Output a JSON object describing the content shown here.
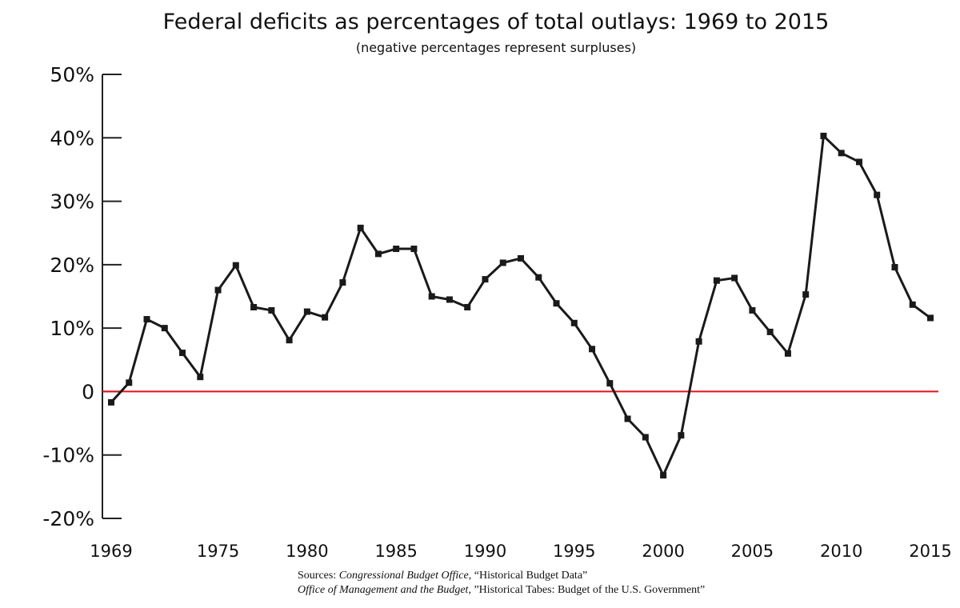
{
  "chart_data": {
    "type": "line",
    "title": "Federal deficits as percentages of total outlays: 1969 to 2015",
    "subtitle": "(negative percentages represent surpluses)",
    "xlabel": "",
    "ylabel": "",
    "ylim": [
      -20,
      50
    ],
    "xlim": [
      1969,
      2015
    ],
    "yticks": [
      50,
      40,
      30,
      20,
      10,
      0,
      -10,
      -20
    ],
    "ytick_labels": [
      "50%",
      "40%",
      "30%",
      "20%",
      "10%",
      "0",
      "-10%",
      "-20%"
    ],
    "xticks": [
      1969,
      1975,
      1980,
      1985,
      1990,
      1995,
      2000,
      2005,
      2010,
      2015
    ],
    "xtick_labels": [
      "1969",
      "1975",
      "1980",
      "1985",
      "1990",
      "1995",
      "2000",
      "2005",
      "2010",
      "2015"
    ],
    "grid": false,
    "zero_line_color": "#e0141e",
    "line_color": "#1a1a1a",
    "marker": "square",
    "x": [
      1969,
      1970,
      1971,
      1972,
      1973,
      1974,
      1975,
      1976,
      1977,
      1978,
      1979,
      1980,
      1981,
      1982,
      1983,
      1984,
      1985,
      1986,
      1987,
      1988,
      1989,
      1990,
      1991,
      1992,
      1993,
      1994,
      1995,
      1996,
      1997,
      1998,
      1999,
      2000,
      2001,
      2002,
      2003,
      2004,
      2005,
      2006,
      2007,
      2008,
      2009,
      2010,
      2011,
      2012,
      2013,
      2014,
      2015
    ],
    "values": [
      -1.7,
      1.4,
      11.4,
      10.0,
      6.1,
      2.3,
      16.0,
      19.9,
      13.3,
      12.8,
      8.1,
      12.6,
      11.7,
      17.2,
      25.8,
      21.7,
      22.5,
      22.5,
      15.0,
      14.5,
      13.3,
      17.7,
      20.3,
      21.0,
      18.0,
      13.9,
      10.8,
      6.7,
      1.3,
      -4.3,
      -7.2,
      -13.2,
      -6.9,
      7.9,
      17.5,
      17.9,
      12.8,
      9.4,
      6.0,
      15.3,
      40.3,
      37.6,
      36.2,
      31.0,
      19.6,
      13.7,
      11.6
    ]
  },
  "sources": {
    "line1_prefix": "Sources: ",
    "line1_org": "Congressional Budget Office",
    "line1_title": ", “Historical Budget Data”",
    "line2_org": "Office of Management and the Budget",
    "line2_title": ", ”Historical Tabes: Budget of the U.S. Government”"
  }
}
